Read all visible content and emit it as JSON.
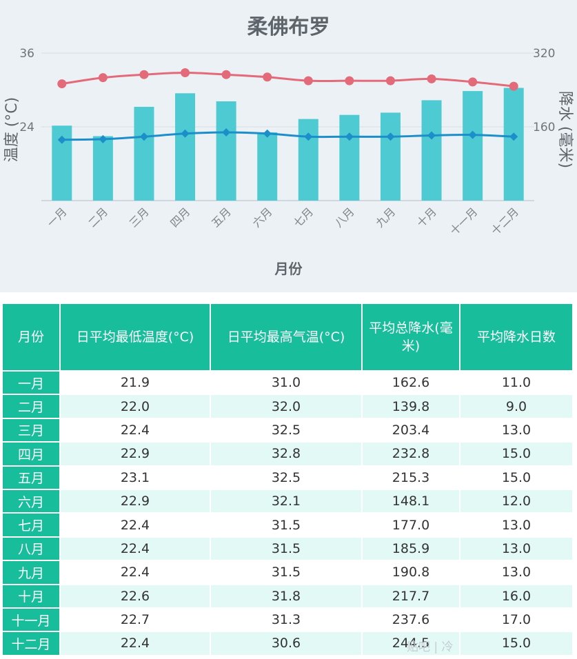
{
  "chart_data": {
    "type": "bar",
    "title": "柔佛布罗",
    "xlabel": "月份",
    "ylabel_left": "温度 (°C)",
    "ylabel_right": "降水 (毫米)",
    "categories": [
      "一月",
      "二月",
      "三月",
      "四月",
      "五月",
      "六月",
      "七月",
      "八月",
      "九月",
      "十月",
      "十一月",
      "十二月"
    ],
    "y_left_ticks": [
      "36",
      "24"
    ],
    "y_right_ticks": [
      "320",
      "160"
    ],
    "y_left_range": [
      12,
      36
    ],
    "y_right_range": [
      0,
      320
    ],
    "grid": true,
    "series": [
      {
        "kind": "bar",
        "axis": "right",
        "color": "#4ecad3",
        "values": [
          162.6,
          139.8,
          203.4,
          232.8,
          215.3,
          148.1,
          177.0,
          185.9,
          190.8,
          217.7,
          237.6,
          244.5
        ]
      },
      {
        "kind": "line",
        "axis": "left",
        "marker": "circle",
        "color": "#e36a78",
        "values": [
          31.0,
          32.0,
          32.5,
          32.8,
          32.5,
          32.1,
          31.5,
          31.5,
          31.5,
          31.8,
          31.3,
          30.6
        ]
      },
      {
        "kind": "line",
        "axis": "left",
        "marker": "diamond",
        "color": "#1c8ec9",
        "values": [
          21.9,
          22.0,
          22.4,
          22.9,
          23.1,
          22.9,
          22.4,
          22.4,
          22.4,
          22.6,
          22.7,
          22.4
        ]
      }
    ]
  },
  "table": {
    "headers": [
      "月份",
      "日平均最低温度(°C)",
      "日平均最高气温(°C)",
      "平均总降水(毫米)",
      "平均降水日数"
    ],
    "rows": [
      [
        "一月",
        "21.9",
        "31.0",
        "162.6",
        "11.0"
      ],
      [
        "二月",
        "22.0",
        "32.0",
        "139.8",
        "9.0"
      ],
      [
        "三月",
        "22.4",
        "32.5",
        "203.4",
        "13.0"
      ],
      [
        "四月",
        "22.9",
        "32.8",
        "232.8",
        "15.0"
      ],
      [
        "五月",
        "23.1",
        "32.5",
        "215.3",
        "15.0"
      ],
      [
        "六月",
        "22.9",
        "32.1",
        "148.1",
        "12.0"
      ],
      [
        "七月",
        "22.4",
        "31.5",
        "177.0",
        "13.0"
      ],
      [
        "八月",
        "22.4",
        "31.5",
        "185.9",
        "13.0"
      ],
      [
        "九月",
        "22.4",
        "31.5",
        "190.8",
        "13.0"
      ],
      [
        "十月",
        "22.6",
        "31.8",
        "217.7",
        "16.0"
      ],
      [
        "十一月",
        "22.7",
        "31.3",
        "237.6",
        "17.0"
      ],
      [
        "十二月",
        "22.4",
        "30.6",
        "244.5",
        "15.0"
      ]
    ]
  },
  "watermark": "贴吧 | 冷"
}
